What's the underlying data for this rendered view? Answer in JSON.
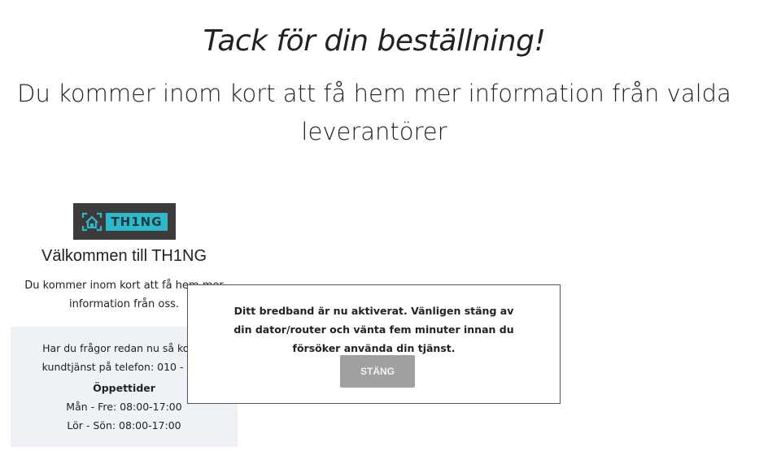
{
  "header": {
    "title": "Tack för din beställning!",
    "subtitle": "Du kommer inom kort att få hem mer information från valda leverantörer"
  },
  "provider": {
    "logo_text": "TH1NG",
    "logo_colors": {
      "background": "#3b3b3b",
      "accent": "#2fb8c9"
    },
    "welcome": "Välkommen till TH1NG",
    "intro": "Du kommer inom kort att få hem mer information från oss.",
    "contact_line1": "Har du frågor redan nu så konta",
    "contact_line2": "kundtjänst på telefon: 010 - 252",
    "hours_title": "Öppettider",
    "hours": [
      "Mån - Fre: 08:00-17:00",
      "Lör - Sön: 08:00-17:00"
    ]
  },
  "modal": {
    "message": "Ditt bredband är nu aktiverat. Vänligen stäng av din dator/router och vänta fem minuter innan du försöker använda din tjänst.",
    "close_label": "STÄNG"
  }
}
